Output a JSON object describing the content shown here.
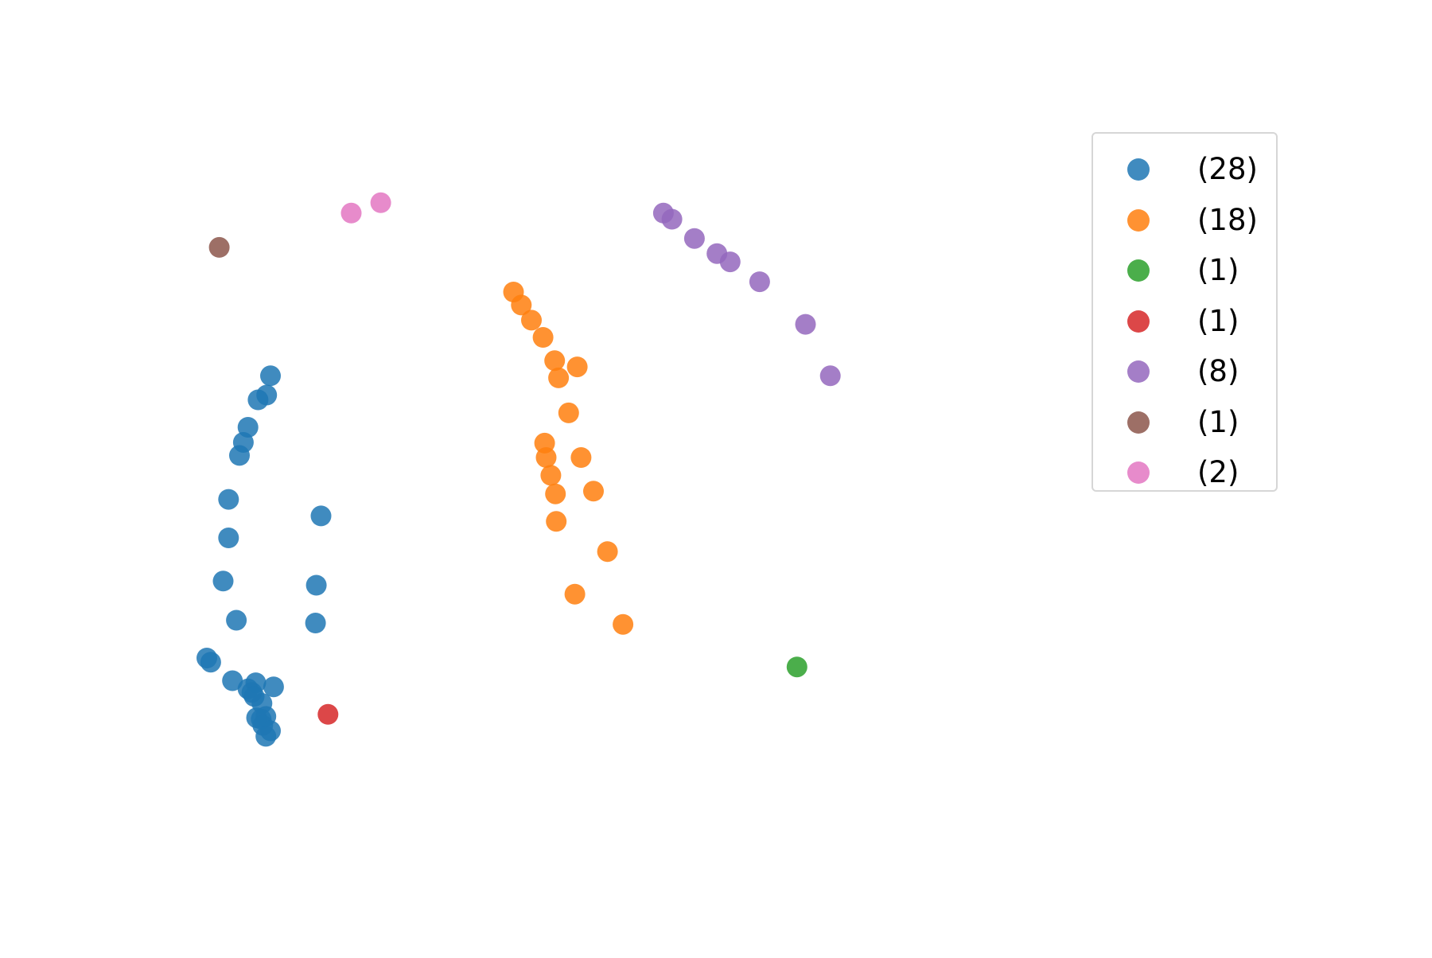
{
  "chart_data": {
    "type": "scatter",
    "title": "",
    "xlabel": "",
    "ylabel": "",
    "axes_visible": false,
    "grid": false,
    "xlim": [
      0,
      1000
    ],
    "ylim": [
      0,
      1000
    ],
    "legend": {
      "placement": "top-right",
      "entries": [
        {
          "label": "(28)",
          "color": "#1f77b4"
        },
        {
          "label": "(18)",
          "color": "#ff7f0e"
        },
        {
          "label": "(1)",
          "color": "#2ca02c"
        },
        {
          "label": "(1)",
          "color": "#d62728"
        },
        {
          "label": "(8)",
          "color": "#9467bd"
        },
        {
          "label": "(1)",
          "color": "#8c564b"
        },
        {
          "label": "(2)",
          "color": "#e377c2"
        }
      ]
    },
    "series": [
      {
        "color": "#1f77b4",
        "points": [
          [
            82,
            630
          ],
          [
            77,
            602
          ],
          [
            66,
            595
          ],
          [
            53,
            555
          ],
          [
            47,
            533
          ],
          [
            42,
            514
          ],
          [
            28,
            450
          ],
          [
            28,
            394
          ],
          [
            21,
            331
          ],
          [
            38,
            274
          ],
          [
            147,
            426
          ],
          [
            141,
            325
          ],
          [
            140,
            270
          ],
          [
            0,
            219
          ],
          [
            5,
            213
          ],
          [
            33,
            186
          ],
          [
            53,
            174
          ],
          [
            63,
            183
          ],
          [
            86,
            177
          ],
          [
            58,
            169
          ],
          [
            61,
            163
          ],
          [
            71,
            153
          ],
          [
            76,
            134
          ],
          [
            64,
            132
          ],
          [
            70,
            130
          ],
          [
            72,
            121
          ],
          [
            82,
            113
          ],
          [
            76,
            105
          ]
        ]
      },
      {
        "color": "#ff7f0e",
        "points": [
          [
            395,
            752
          ],
          [
            405,
            733
          ],
          [
            418,
            711
          ],
          [
            433,
            686
          ],
          [
            448,
            652
          ],
          [
            477,
            643
          ],
          [
            453,
            627
          ],
          [
            466,
            576
          ],
          [
            435,
            532
          ],
          [
            437,
            511
          ],
          [
            482,
            511
          ],
          [
            443,
            485
          ],
          [
            449,
            458
          ],
          [
            498,
            462
          ],
          [
            450,
            418
          ],
          [
            516,
            374
          ],
          [
            474,
            312
          ],
          [
            536,
            268
          ]
        ]
      },
      {
        "color": "#2ca02c",
        "points": [
          [
            760,
            206
          ]
        ]
      },
      {
        "color": "#d62728",
        "points": [
          [
            156,
            137
          ]
        ]
      },
      {
        "color": "#9467bd",
        "points": [
          [
            588,
            867
          ],
          [
            599,
            858
          ],
          [
            628,
            830
          ],
          [
            657,
            808
          ],
          [
            674,
            796
          ],
          [
            712,
            767
          ],
          [
            771,
            705
          ],
          [
            803,
            630
          ]
        ]
      },
      {
        "color": "#8c564b",
        "points": [
          [
            16,
            817
          ]
        ]
      },
      {
        "color": "#e377c2",
        "points": [
          [
            186,
            867
          ],
          [
            224,
            882
          ]
        ]
      }
    ]
  }
}
